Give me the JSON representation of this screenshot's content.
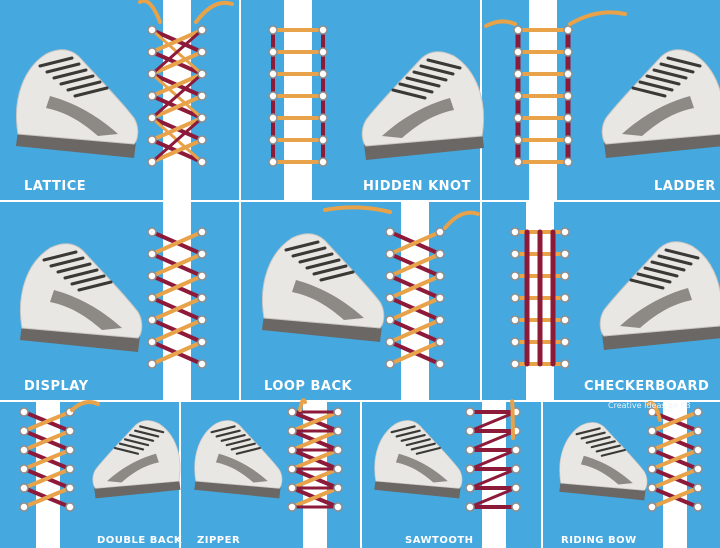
{
  "credit": "Creative Ideas on FB",
  "colors": {
    "background": "#45a8de",
    "strip": "#ffffff",
    "lace_red": "#8e1a3a",
    "lace_orange": "#e8a24a",
    "shoe_upper": "#e9e7e4",
    "shoe_suede": "#8d8a86",
    "shoe_sole": "#6a6764",
    "shoe_lace": "#3b3936"
  },
  "panels": [
    {
      "label": "LATTICE"
    },
    {
      "label": "HIDDEN KNOT"
    },
    {
      "label": "LADDER"
    },
    {
      "label": "DISPLAY"
    },
    {
      "label": "LOOP BACK"
    },
    {
      "label": "CHECKERBOARD"
    },
    {
      "label": "DOUBLE BACK"
    },
    {
      "label": "ZIPPER"
    },
    {
      "label": "SAWTOOTH"
    },
    {
      "label": "RIDING BOW"
    }
  ]
}
